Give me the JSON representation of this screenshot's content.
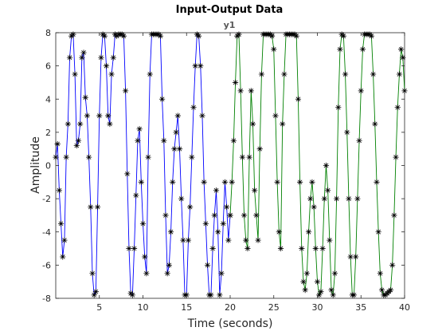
{
  "chart_data": {
    "type": "line",
    "title": "Input-Output Data",
    "subtitle": "y1",
    "xlabel": "Time (seconds)",
    "ylabel": "Amplitude",
    "xlim": [
      0,
      40
    ],
    "ylim": [
      -8,
      8
    ],
    "xticks": [
      5,
      10,
      15,
      20,
      25,
      30,
      35,
      40
    ],
    "yticks": [
      -8,
      -6,
      -4,
      -2,
      0,
      2,
      4,
      6,
      8
    ],
    "grid": false,
    "marker": "*",
    "colors": {
      "series_1": "#0000ff",
      "series_2": "#008000",
      "marker": "#000000",
      "axes": "#262626"
    },
    "series": [
      {
        "color": "#0000ff",
        "x": [
          0.0,
          0.2,
          0.4,
          0.6,
          0.8,
          1.0,
          1.2,
          1.4,
          1.6,
          1.8,
          2.0,
          2.2,
          2.4,
          2.6,
          2.8,
          3.0,
          3.2,
          3.4,
          3.6,
          3.8,
          4.0,
          4.2,
          4.4,
          4.6,
          4.8,
          5.0,
          5.2,
          5.4,
          5.6,
          5.8,
          6.0,
          6.2,
          6.4,
          6.6,
          6.8,
          7.0,
          7.2,
          7.4,
          7.6,
          7.8,
          8.0,
          8.2,
          8.4,
          8.6,
          8.8,
          9.0,
          9.2,
          9.4,
          9.6,
          9.8,
          10.0,
          10.2,
          10.4,
          10.6,
          10.8,
          11.0,
          11.2,
          11.4,
          11.6,
          11.8,
          12.0,
          12.2,
          12.4,
          12.6,
          12.8,
          13.0,
          13.2,
          13.4,
          13.6,
          13.8,
          14.0,
          14.2,
          14.4,
          14.6,
          14.8,
          15.0,
          15.2,
          15.4,
          15.6,
          15.8,
          16.0,
          16.2,
          16.4,
          16.6,
          16.8,
          17.0,
          17.2,
          17.4,
          17.6,
          17.8,
          18.0,
          18.2,
          18.4,
          18.6,
          18.8,
          19.0,
          19.2,
          19.4,
          19.6,
          19.8,
          20.0
        ],
        "y": [
          0.5,
          1.3,
          -1.5,
          -3.5,
          -5.5,
          -4.5,
          0.5,
          2.5,
          6.5,
          7.8,
          7.9,
          5.5,
          1.2,
          1.5,
          2.5,
          6.5,
          6.8,
          4.1,
          3.0,
          0.5,
          -2.5,
          -6.5,
          -7.8,
          -7.6,
          -2.5,
          3.0,
          6.5,
          7.9,
          7.8,
          6.0,
          3.0,
          2.5,
          5.5,
          6.5,
          7.9,
          7.8,
          7.9,
          7.9,
          7.9,
          7.8,
          4.5,
          -0.5,
          -5.0,
          -7.7,
          -7.8,
          -5.0,
          -1.8,
          1.5,
          2.2,
          -1.0,
          -3.5,
          -5.5,
          -6.5,
          0.5,
          5.5,
          7.9,
          7.9,
          7.9,
          7.9,
          7.9,
          7.8,
          4.0,
          1.5,
          -3.0,
          -6.5,
          -6.0,
          -4.0,
          -1.0,
          1.0,
          2.0,
          3.0,
          1.0,
          -2.0,
          -4.5,
          -7.8,
          -7.8,
          -4.5,
          -2.5,
          0.5,
          3.5,
          6.0,
          7.9,
          7.8,
          6.0,
          3.0,
          -1.0,
          -3.5,
          -6.0,
          -7.8,
          -7.8,
          -5.0,
          -3.0,
          -1.5,
          -4.0,
          -7.8,
          -6.5,
          -3.5,
          -1.0,
          -2.5,
          -4.5,
          -3.0
        ]
      },
      {
        "color": "#008000",
        "x": [
          20.0,
          20.2,
          20.4,
          20.6,
          20.8,
          21.0,
          21.2,
          21.4,
          21.6,
          21.8,
          22.0,
          22.2,
          22.4,
          22.6,
          22.8,
          23.0,
          23.2,
          23.4,
          23.6,
          23.8,
          24.0,
          24.2,
          24.4,
          24.6,
          24.8,
          25.0,
          25.2,
          25.4,
          25.6,
          25.8,
          26.0,
          26.2,
          26.4,
          26.6,
          26.8,
          27.0,
          27.2,
          27.4,
          27.6,
          27.8,
          28.0,
          28.2,
          28.4,
          28.6,
          28.8,
          29.0,
          29.2,
          29.4,
          29.6,
          29.8,
          30.0,
          30.2,
          30.4,
          30.6,
          30.8,
          31.0,
          31.2,
          31.4,
          31.6,
          31.8,
          32.0,
          32.2,
          32.4,
          32.6,
          32.8,
          33.0,
          33.2,
          33.4,
          33.6,
          33.8,
          34.0,
          34.2,
          34.4,
          34.6,
          34.8,
          35.0,
          35.2,
          35.4,
          35.6,
          35.8,
          36.0,
          36.2,
          36.4,
          36.6,
          36.8,
          37.0,
          37.2,
          37.4,
          37.6,
          37.8,
          38.0,
          38.2,
          38.4,
          38.6,
          38.8,
          39.0,
          39.2,
          39.4,
          39.6,
          39.8,
          40.0
        ],
        "y": [
          -3.0,
          -1.0,
          1.5,
          5.0,
          7.8,
          7.9,
          4.5,
          0.5,
          -3.0,
          -4.5,
          -5.0,
          0.5,
          4.5,
          2.5,
          -1.5,
          -3.0,
          -4.5,
          1.0,
          5.5,
          7.9,
          7.9,
          7.9,
          7.9,
          7.9,
          7.8,
          7.0,
          3.0,
          -1.0,
          -4.0,
          -5.0,
          2.5,
          5.5,
          7.9,
          7.9,
          7.9,
          7.9,
          7.9,
          7.9,
          7.8,
          4.0,
          -1.0,
          -5.0,
          -7.0,
          -7.5,
          -6.5,
          -4.0,
          -2.0,
          -1.0,
          -2.5,
          -5.0,
          -7.0,
          -7.8,
          -7.6,
          -5.0,
          -2.0,
          0.0,
          -1.5,
          -4.5,
          -7.5,
          -7.8,
          -6.5,
          -2.0,
          3.5,
          7.0,
          7.9,
          7.8,
          5.5,
          2.0,
          -2.0,
          -5.5,
          -7.8,
          -7.8,
          -5.5,
          -2.0,
          1.5,
          4.5,
          7.0,
          7.9,
          7.9,
          7.9,
          7.9,
          7.8,
          5.5,
          2.5,
          -1.0,
          -4.0,
          -6.5,
          -7.5,
          -7.8,
          -7.8,
          -7.7,
          -7.6,
          -7.5,
          -6.0,
          -3.0,
          0.5,
          3.5,
          5.5,
          7.0,
          6.5,
          4.5
        ]
      }
    ]
  }
}
